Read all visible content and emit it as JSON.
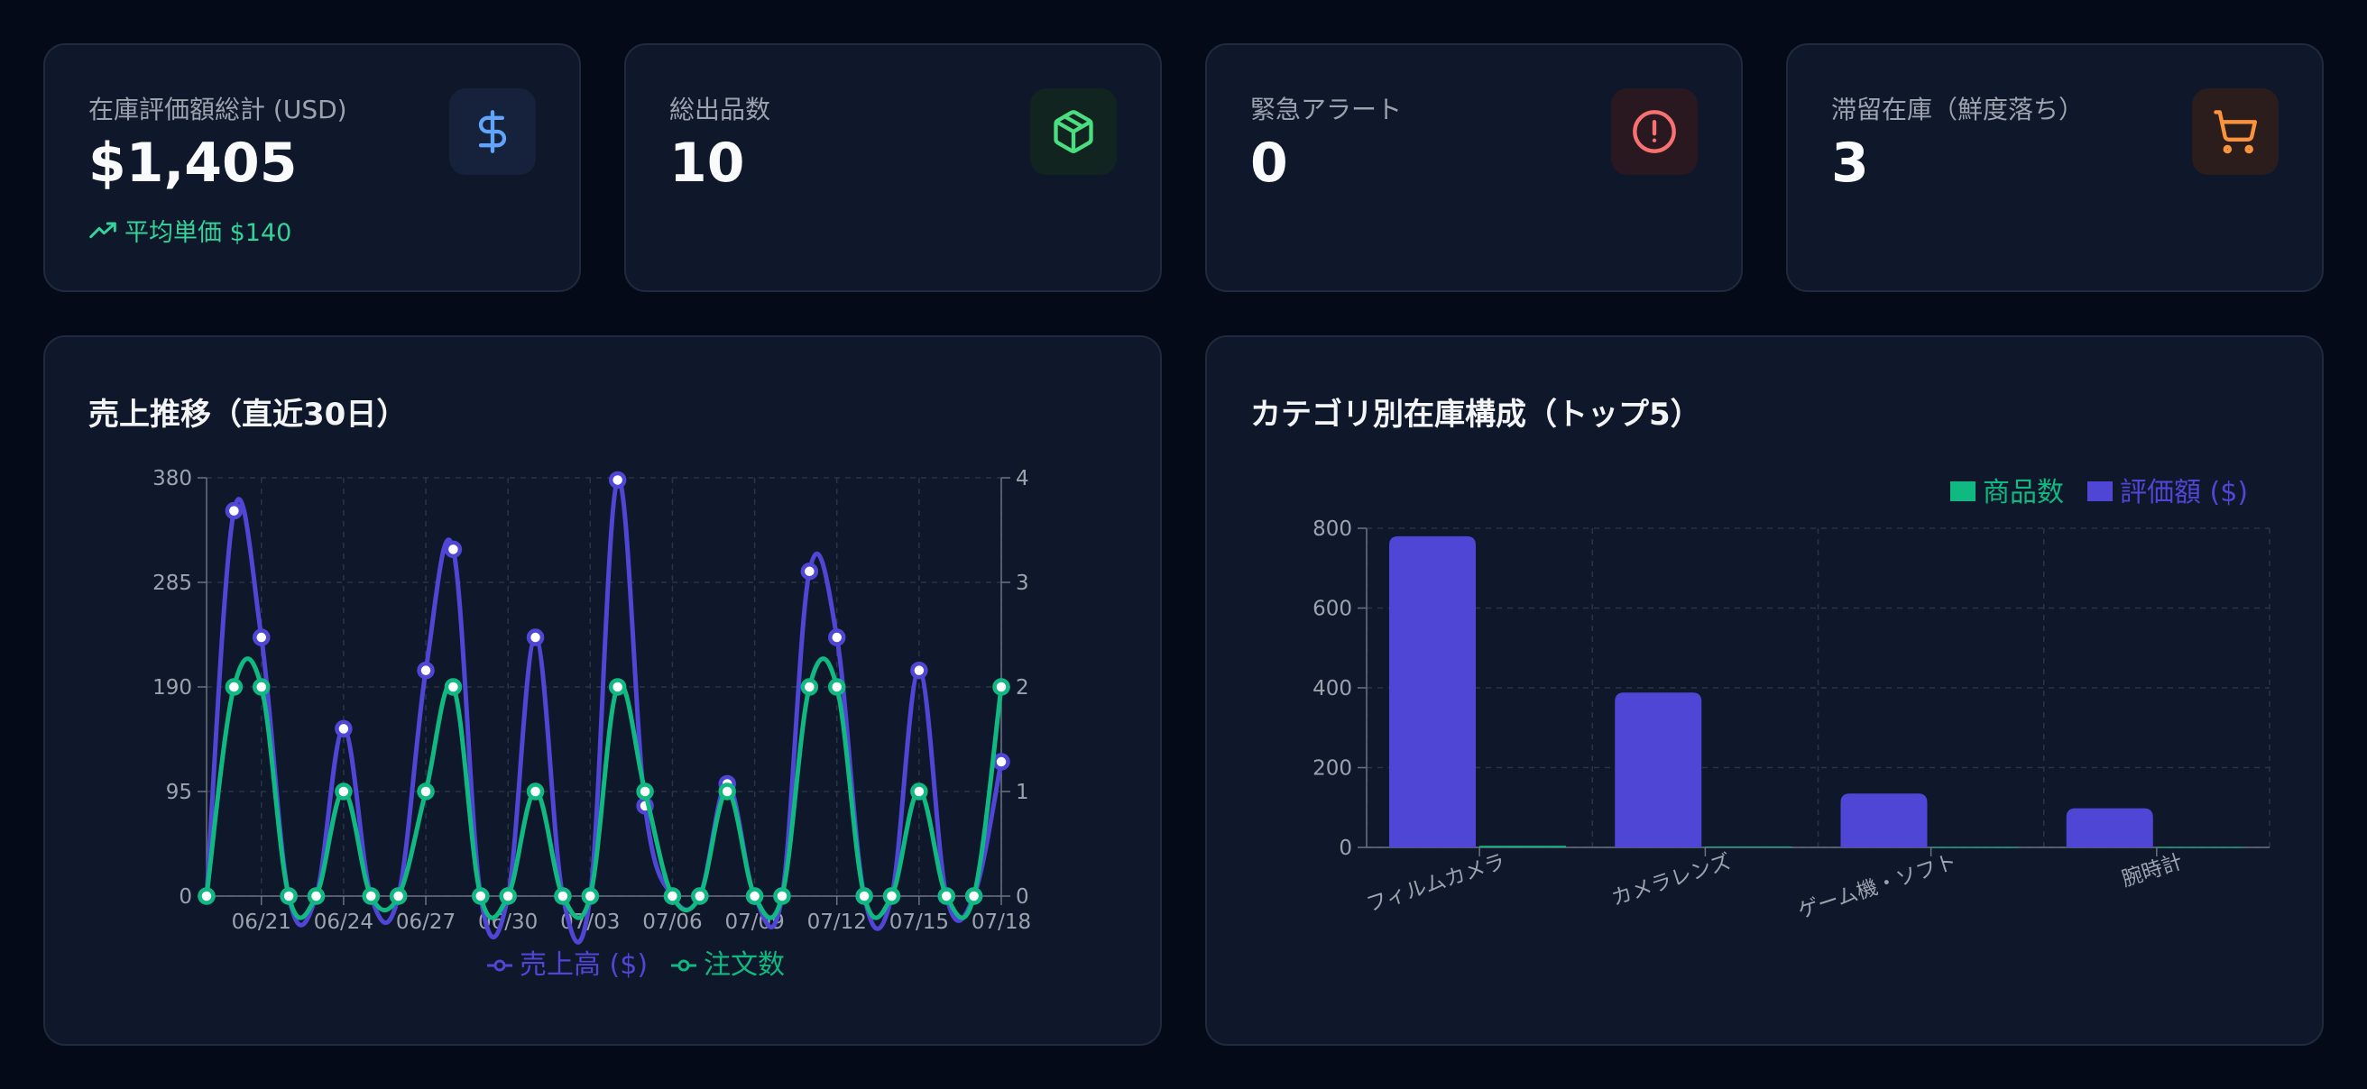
{
  "stats": [
    {
      "label": "在庫評価額総計 (USD)",
      "value": "$1,405",
      "sub": "平均単価 $140",
      "icon": "dollar-icon",
      "accent": "#60a5fa",
      "icon_bg": "#16213b"
    },
    {
      "label": "総出品数",
      "value": "10",
      "icon": "package-icon",
      "accent": "#4ade80",
      "icon_bg": "#12241f"
    },
    {
      "label": "緊急アラート",
      "value": "0",
      "icon": "alert-circle-icon",
      "accent": "#f87171",
      "icon_bg": "#2a1820"
    },
    {
      "label": "滞留在庫（鮮度落ち）",
      "value": "3",
      "icon": "cart-icon",
      "accent": "#fb923c",
      "icon_bg": "#2a1d1c"
    }
  ],
  "sales_panel": {
    "title": "売上推移（直近30日）"
  },
  "category_panel": {
    "title": "カテゴリ別在庫構成（トップ5）"
  },
  "chart_data": [
    {
      "type": "line",
      "title": "売上推移（直近30日）",
      "x_ticks": [
        "06/21",
        "06/24",
        "06/27",
        "06/30",
        "07/03",
        "07/06",
        "07/09",
        "07/12",
        "07/15",
        "07/18"
      ],
      "y_left_ticks": [
        "0",
        "95",
        "190",
        "285",
        "380"
      ],
      "y_right_ticks": [
        "0",
        "1",
        "2",
        "3",
        "4"
      ],
      "ylim_left": [
        0,
        380
      ],
      "ylim_right": [
        0,
        4
      ],
      "grid": true,
      "legend": "bottom",
      "series": [
        {
          "name": "売上高 ($)",
          "axis": "left",
          "color": "#5046d6",
          "values": [
            0,
            350,
            235,
            0,
            0,
            152,
            0,
            0,
            205,
            315,
            0,
            0,
            235,
            0,
            0,
            378,
            82,
            0,
            0,
            102,
            0,
            0,
            295,
            235,
            0,
            0,
            205,
            0,
            0,
            122
          ]
        },
        {
          "name": "注文数",
          "axis": "right",
          "color": "#10b981",
          "values": [
            0,
            2,
            2,
            0,
            0,
            1,
            0,
            0,
            1,
            2,
            0,
            0,
            1,
            0,
            0,
            2,
            1,
            0,
            0,
            1,
            0,
            0,
            2,
            2,
            0,
            0,
            1,
            0,
            0,
            2
          ]
        }
      ]
    },
    {
      "type": "bar",
      "title": "カテゴリ別在庫構成（トップ5）",
      "categories": [
        "フィルムカメラ",
        "カメラレンズ",
        "ゲーム機・ソフト",
        "腕時計"
      ],
      "y_ticks": [
        "0",
        "200",
        "400",
        "600",
        "800"
      ],
      "ylim": [
        0,
        800
      ],
      "grid": true,
      "legend": "top-right",
      "series": [
        {
          "name": "評価額 ($)",
          "color": "#5046d6",
          "values": [
            780,
            388,
            135,
            98
          ]
        },
        {
          "name": "商品数",
          "color": "#10b981",
          "values": [
            4,
            2,
            1,
            1
          ]
        }
      ]
    }
  ]
}
